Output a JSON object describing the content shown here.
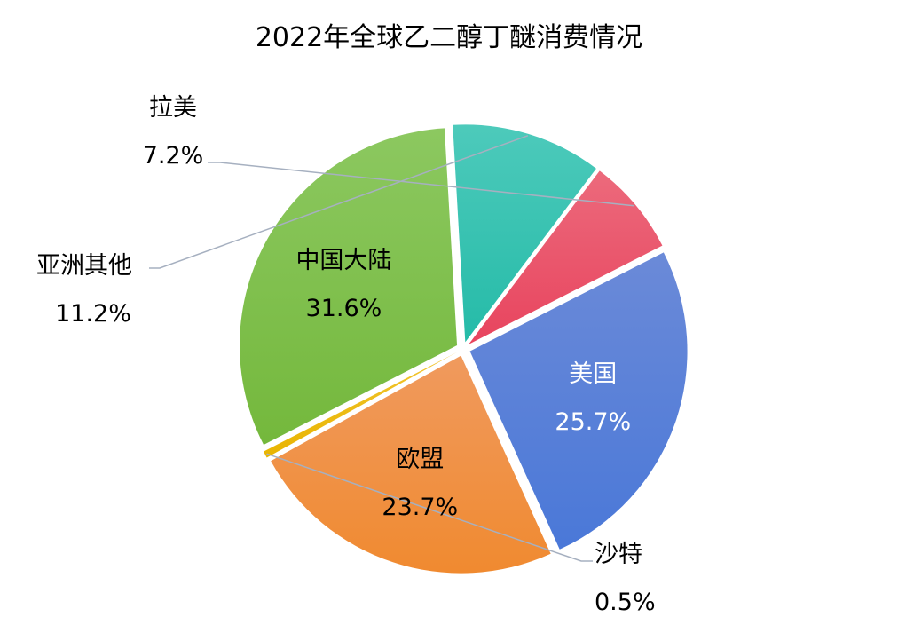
{
  "chart_data": {
    "type": "pie",
    "title": "2022年全球乙二醇丁醚消费情况",
    "unit": "%",
    "slices": [
      {
        "label": "美国",
        "value": 25.7,
        "display": "25.7%",
        "color": "#4a78d8",
        "color_light": "#6b8ad8",
        "label_mode": "inside",
        "label_color": "light"
      },
      {
        "label": "欧盟",
        "value": 23.7,
        "display": "23.7%",
        "color": "#f08a30",
        "color_light": "#f09a5e",
        "label_mode": "inside",
        "label_color": "dark"
      },
      {
        "label": "沙特",
        "value": 0.5,
        "display": "0.5%",
        "color": "#e8b400",
        "color_light": "#f2c531",
        "label_mode": "outside",
        "label_color": "dark"
      },
      {
        "label": "中国大陆",
        "value": 31.6,
        "display": "31.6%",
        "color": "#74b83c",
        "color_light": "#8cc860",
        "label_mode": "inside",
        "label_color": "dark"
      },
      {
        "label": "亚洲其他",
        "value": 11.2,
        "display": "11.2%",
        "color": "#25bba8",
        "color_light": "#4dcabb",
        "label_mode": "outside",
        "label_color": "dark"
      },
      {
        "label": "拉美",
        "value": 7.2,
        "display": "7.2%",
        "color": "#e8445e",
        "color_light": "#ec6a7c",
        "label_mode": "outside",
        "label_color": "dark"
      }
    ],
    "legend": "none",
    "start_angle_deg": 63
  }
}
